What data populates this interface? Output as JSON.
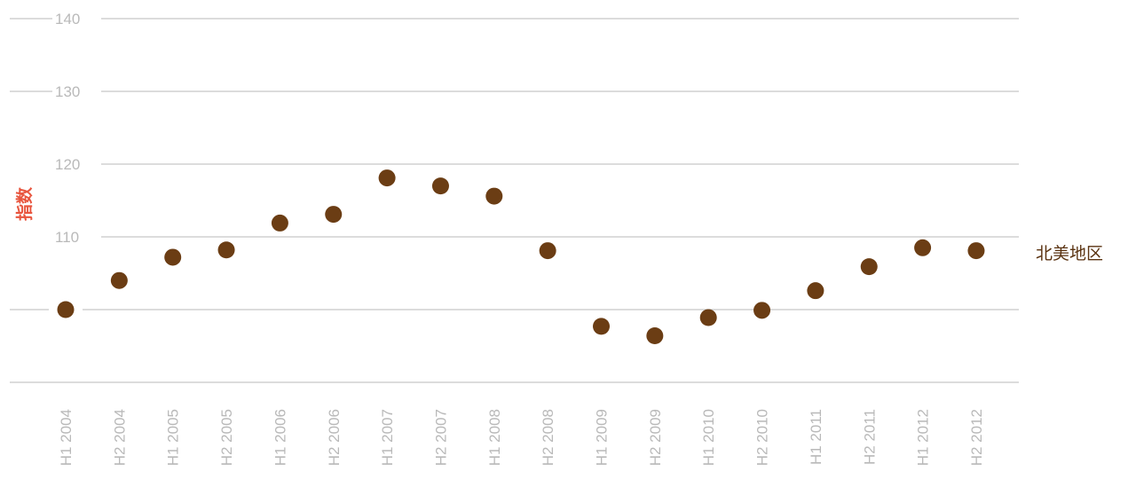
{
  "chart_data": {
    "type": "scatter",
    "categories": [
      "H1 2004",
      "H2 2004",
      "H1 2005",
      "H2 2005",
      "H1 2006",
      "H2 2006",
      "H1 2007",
      "H2 2007",
      "H1 2008",
      "H2 2008",
      "H1 2009",
      "H2 2009",
      "H1 2010",
      "H2 2010",
      "H1 2011",
      "H2 2011",
      "H1 2012",
      "H2 2012"
    ],
    "series": [
      {
        "name": "北美地区",
        "color": "#6b3d14",
        "values": [
          100.0,
          104.0,
          107.2,
          108.2,
          111.9,
          113.1,
          118.1,
          117.0,
          115.6,
          108.1,
          97.7,
          96.4,
          98.9,
          99.9,
          102.6,
          105.9,
          108.5,
          108.1
        ]
      }
    ],
    "ylabel": "指数",
    "yticks": [
      110,
      120,
      130,
      140
    ],
    "ylim": [
      90,
      140
    ],
    "grid": true
  }
}
